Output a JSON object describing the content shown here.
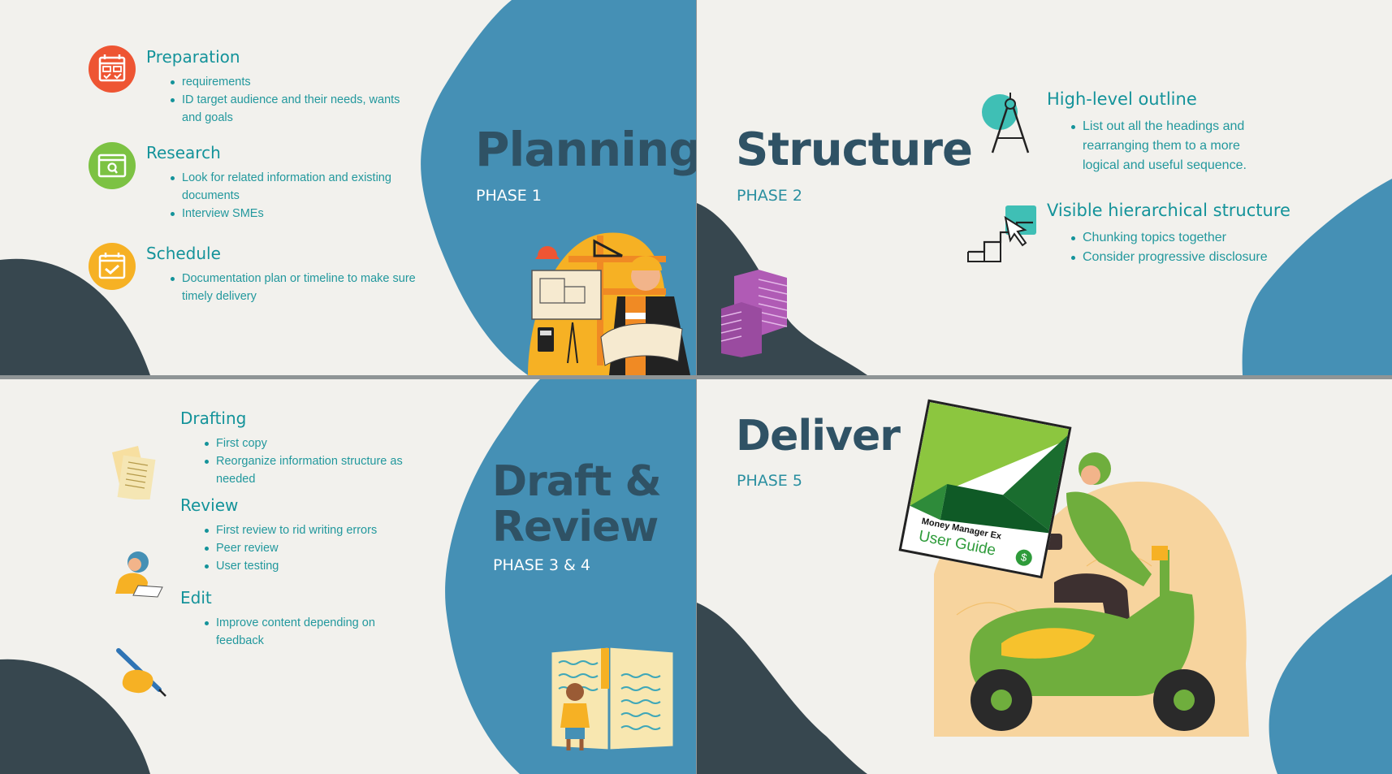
{
  "slides": {
    "planning": {
      "title": "Planning",
      "phase": "PHASE 1",
      "items": [
        {
          "heading": "Preparation",
          "bullets": [
            "requirements",
            "ID target audience and their needs, wants and goals"
          ]
        },
        {
          "heading": "Research",
          "bullets": [
            "Look for related information and existing documents",
            "Interview SMEs"
          ]
        },
        {
          "heading": "Schedule",
          "bullets": [
            "Documentation plan or timeline to make sure timely delivery"
          ]
        }
      ]
    },
    "structure": {
      "title": "Structure",
      "phase": "PHASE 2",
      "items": [
        {
          "heading": "High-level outline",
          "bullets": [
            "List out all the headings and rearranging them to a more logical and useful sequence."
          ]
        },
        {
          "heading": "Visible hierarchical structure",
          "bullets": [
            "Chunking topics together",
            "Consider progressive disclosure"
          ]
        }
      ]
    },
    "draft_review": {
      "title_line1": "Draft &",
      "title_line2": "Review",
      "phase": "PHASE 3 & 4",
      "items": [
        {
          "heading": "Drafting",
          "bullets": [
            "First copy",
            "Reorganize information structure as needed"
          ]
        },
        {
          "heading": "Review",
          "bullets": [
            "First review to rid writing errors",
            "Peer review",
            "User testing"
          ]
        },
        {
          "heading": "Edit",
          "bullets": [
            "Improve content depending on feedback"
          ]
        }
      ]
    },
    "deliver": {
      "title": "Deliver",
      "phase": "PHASE 5",
      "guide_brand": "Money Manager Ex",
      "guide_title": "User Guide"
    }
  },
  "colors": {
    "teal_blue": "#4590b5",
    "dark_slate": "#37474f",
    "title_navy": "#2f5265",
    "accent_teal": "#14939a",
    "bg_cream": "#f2f1ed"
  },
  "icons": [
    "calendar-icon",
    "browser-search-icon",
    "calendar-check-icon",
    "compass-icon",
    "stairs-cursor-icon"
  ]
}
